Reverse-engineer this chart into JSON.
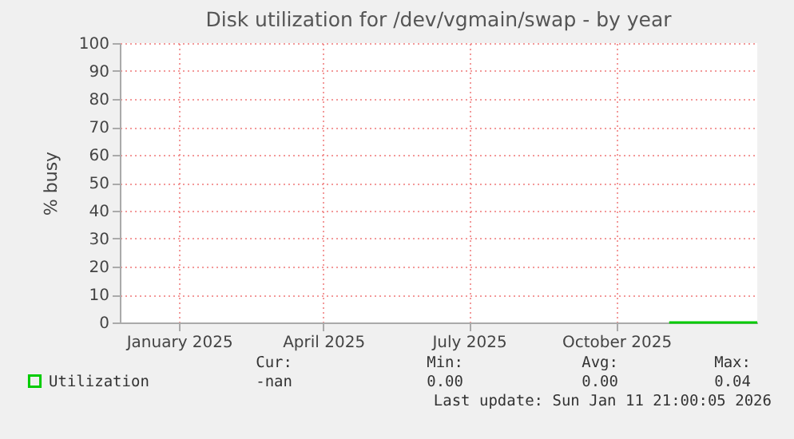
{
  "chart_data": {
    "type": "line",
    "title": "Disk utilization for /dev/vgmain/swap - by year",
    "ylabel": "% busy",
    "x": [
      "2025-11-03",
      "2025-11-20",
      "2025-12-10",
      "2025-12-28"
    ],
    "series": [
      {
        "name": "Utilization",
        "color": "#00cc00",
        "values": [
          0,
          0,
          0,
          0
        ]
      }
    ],
    "xlim": [
      "2024-11-25",
      "2025-12-28"
    ],
    "xticks": [
      {
        "value": "2025-01-01",
        "label": "January 2025"
      },
      {
        "value": "2025-04-01",
        "label": "April 2025"
      },
      {
        "value": "2025-07-01",
        "label": "July 2025"
      },
      {
        "value": "2025-10-01",
        "label": "October 2025"
      }
    ],
    "ylim": [
      0,
      100
    ],
    "yticks": [
      0,
      10,
      20,
      30,
      40,
      50,
      60,
      70,
      80,
      90,
      100
    ],
    "grid": true,
    "legend": "bottom left",
    "marker": "none",
    "line_style": "solid",
    "annotations": [
      "Cur:",
      "Min:",
      "Avg:",
      "Max:",
      "-nan",
      "0.00",
      "0.00",
      "0.04",
      "Last update: Sun Jan 11 21:00:05 2026"
    ]
  }
}
